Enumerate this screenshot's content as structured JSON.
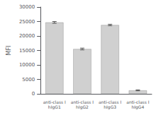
{
  "chart_data": {
    "type": "bar",
    "categories": [
      "anti-class I\nhIgG1",
      "anti-class I\nhIgG2",
      "anti-class I\nhIgG3",
      "anti-class I\nhIgG4"
    ],
    "values": [
      24700,
      15500,
      23800,
      1200
    ],
    "errors": [
      300,
      300,
      250,
      150
    ],
    "color": "#d0d0d0",
    "ylabel": "MFI",
    "ylim": [
      0,
      30000
    ],
    "yticks": [
      0,
      5000,
      10000,
      15000,
      20000,
      25000,
      30000
    ],
    "grid": false
  }
}
